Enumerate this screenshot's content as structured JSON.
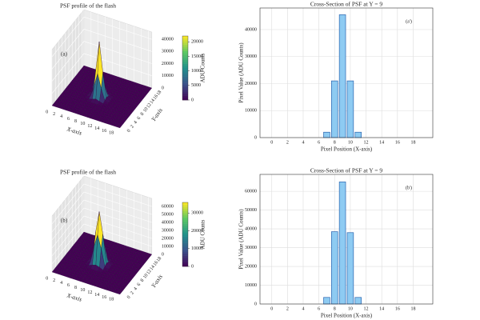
{
  "chart_data": [
    {
      "type": "surface",
      "title": "PSF profile of the flash",
      "xlabel": "X-axis",
      "ylabel": "Y-axis",
      "annotation": "(a)",
      "xlim": [
        0,
        19
      ],
      "ylim": [
        0,
        19
      ],
      "zlim": [
        0,
        46000
      ],
      "xticks": [
        0,
        2,
        4,
        6,
        8,
        10,
        12,
        14,
        16,
        18
      ],
      "yticks": [
        0,
        2,
        4,
        6,
        8,
        10,
        12,
        14,
        16,
        18
      ],
      "zticks": [
        0,
        10000,
        20000,
        30000,
        40000
      ],
      "x": [
        7,
        8,
        9,
        10,
        11
      ],
      "y": [
        7,
        8,
        9,
        10,
        11
      ],
      "z": [
        [
          88,
          923,
          2000,
          923,
          88
        ],
        [
          923,
          9692,
          21000,
          9692,
          923
        ],
        [
          2000,
          21000,
          45500,
          21000,
          2000
        ],
        [
          923,
          9692,
          21000,
          9692,
          923
        ],
        [
          88,
          923,
          2000,
          923,
          88
        ]
      ],
      "colorbar": {
        "label": "ADU Counts",
        "lim": [
          0,
          22000
        ],
        "ticks": [
          0,
          5000,
          10000,
          15000,
          20000
        ]
      }
    },
    {
      "type": "bar",
      "title": "Cross-Section of PSF at Y = 9",
      "xlabel": "Pixel Position (X-axis)",
      "ylabel": "Pixel Value (ADU Counts)",
      "annotation": "(a')",
      "x": [
        7,
        8,
        9,
        10,
        11
      ],
      "values": [
        2000,
        21000,
        45500,
        21000,
        2000
      ],
      "color": "#8ecbf2",
      "edgecolor": "#2a64b0",
      "xlim": [
        -1.5,
        20.5
      ],
      "ylim": [
        0,
        48000
      ],
      "xticks": [
        0,
        2,
        4,
        6,
        8,
        10,
        12,
        14,
        16,
        18
      ],
      "yticks": [
        0,
        10000,
        20000,
        30000,
        40000
      ],
      "grid": true
    },
    {
      "type": "surface",
      "title": "PSF profile of the flash",
      "xlabel": "X-axis",
      "ylabel": "Y-axis",
      "annotation": "(b)",
      "xlim": [
        0,
        19
      ],
      "ylim": [
        0,
        19
      ],
      "zlim": [
        0,
        70000
      ],
      "xticks": [
        0,
        2,
        4,
        6,
        8,
        10,
        12,
        14,
        16,
        18
      ],
      "yticks": [
        0,
        2,
        4,
        6,
        8,
        10,
        12,
        14,
        16,
        18
      ],
      "zticks": [
        0,
        10000,
        20000,
        30000,
        40000,
        50000,
        60000
      ],
      "x": [
        7,
        8,
        9,
        10,
        11
      ],
      "y": [
        7,
        8,
        9,
        10,
        11
      ],
      "z": [
        [
          188,
          2073,
          3500,
          2046,
          188
        ],
        [
          2073,
          22804,
          38500,
          22508,
          2073
        ],
        [
          3500,
          38500,
          65000,
          38000,
          3500
        ],
        [
          2046,
          22508,
          38000,
          22215,
          2046
        ],
        [
          188,
          2073,
          3500,
          2046,
          188
        ]
      ],
      "colorbar": {
        "label": "ADU Counts",
        "lim": [
          0,
          36000
        ],
        "ticks": [
          0,
          10000,
          20000,
          30000
        ]
      }
    },
    {
      "type": "bar",
      "title": "Cross-Section of PSF at Y = 9",
      "xlabel": "Pixel Position (X-axis)",
      "ylabel": "Pixel Value (ADU Counts)",
      "annotation": "(b')",
      "x": [
        7,
        8,
        9,
        10,
        11
      ],
      "values": [
        3500,
        38500,
        65000,
        38000,
        3500
      ],
      "color": "#8ecbf2",
      "edgecolor": "#2a64b0",
      "xlim": [
        -1.5,
        20.5
      ],
      "ylim": [
        0,
        69000
      ],
      "xticks": [
        0,
        2,
        4,
        6,
        8,
        10,
        12,
        14,
        16,
        18
      ],
      "yticks": [
        0,
        10000,
        20000,
        30000,
        40000,
        50000,
        60000
      ],
      "grid": true
    }
  ]
}
